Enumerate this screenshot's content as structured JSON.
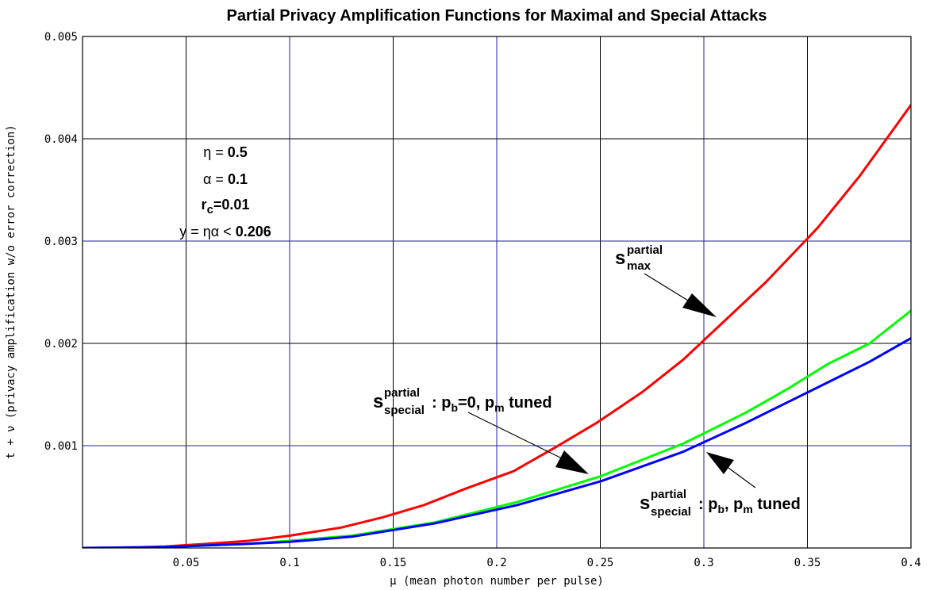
{
  "chart_data": {
    "type": "line",
    "title": "Partial Privacy Amplification Functions  for Maximal and Special Attacks",
    "xlabel": "μ (mean photon number per pulse)",
    "ylabel": "t + ν (privacy amplification w/o error correction)",
    "xlim": [
      0,
      0.4
    ],
    "ylim": [
      0,
      0.005
    ],
    "x_ticks": [
      0.05,
      0.1,
      0.15,
      0.2,
      0.25,
      0.3,
      0.35,
      0.4
    ],
    "x_tick_labels": [
      "0.05",
      "0.1",
      "0.15",
      "0.2",
      "0.25",
      "0.3",
      "0.35",
      "0.4"
    ],
    "y_ticks": [
      0.001,
      0.002,
      0.003,
      0.004,
      0.005
    ],
    "y_tick_labels": [
      "0.001",
      "0.002",
      "0.003",
      "0.004",
      "0.005"
    ],
    "grid": true,
    "series": [
      {
        "color": "#ff0000",
        "x": [
          0,
          0.02,
          0.04,
          0.06,
          0.08,
          0.1,
          0.125,
          0.145,
          0.165,
          0.185,
          0.208,
          0.228,
          0.248,
          0.27,
          0.29,
          0.31,
          0.33,
          0.355,
          0.375,
          0.39,
          0.4
        ],
        "y": [
          0,
          3e-06,
          1.5e-05,
          4e-05,
          7e-05,
          0.00012,
          0.0002,
          0.0003,
          0.00042,
          0.00058,
          0.00075,
          0.00098,
          0.00122,
          0.00152,
          0.00184,
          0.00222,
          0.0026,
          0.00313,
          0.00363,
          0.00405,
          0.00433
        ]
      },
      {
        "color": "#00ff00",
        "x": [
          0,
          0.04,
          0.08,
          0.1,
          0.13,
          0.17,
          0.21,
          0.25,
          0.29,
          0.32,
          0.34,
          0.36,
          0.38,
          0.4
        ],
        "y": [
          0,
          1e-05,
          4e-05,
          7e-05,
          0.00012,
          0.00025,
          0.00045,
          0.0007,
          0.00102,
          0.00132,
          0.00155,
          0.0018,
          0.002,
          0.00232
        ]
      },
      {
        "color": "#0000ff",
        "x": [
          0,
          0.04,
          0.08,
          0.1,
          0.13,
          0.17,
          0.21,
          0.25,
          0.29,
          0.32,
          0.34,
          0.36,
          0.38,
          0.4
        ],
        "y": [
          0,
          1e-05,
          4e-05,
          6e-05,
          0.00011,
          0.00024,
          0.00042,
          0.00065,
          0.00094,
          0.00122,
          0.00142,
          0.00162,
          0.00182,
          0.00205
        ]
      }
    ],
    "annotations": {
      "params": [
        {
          "sym": "η = ",
          "val": "0.5"
        },
        {
          "sym": "α = ",
          "val": "0.1"
        },
        {
          "sym": "",
          "val": "r",
          "sub": "c",
          "tail": "=0.01"
        },
        {
          "sym": "y = ηα < ",
          "val": "0.206",
          "prefix": "y"
        }
      ],
      "label_max": {
        "base": "s",
        "sup": "partial",
        "sub": "max"
      },
      "label_special1": {
        "base": "s",
        "sup": "partial",
        "sub": "special",
        "colon": ": ",
        "p1": "p",
        "p1sub": "b",
        "p1tail": "=0, ",
        "p2": "p",
        "p2sub": "m",
        "tail": " tuned"
      },
      "label_special2": {
        "base": "s",
        "sup": "partial",
        "sub": "special",
        "colon": ": ",
        "p1": "p",
        "p1sub": "b",
        "p1tail": ", ",
        "p2": "p",
        "p2sub": "m",
        "tail": " tuned"
      }
    }
  }
}
